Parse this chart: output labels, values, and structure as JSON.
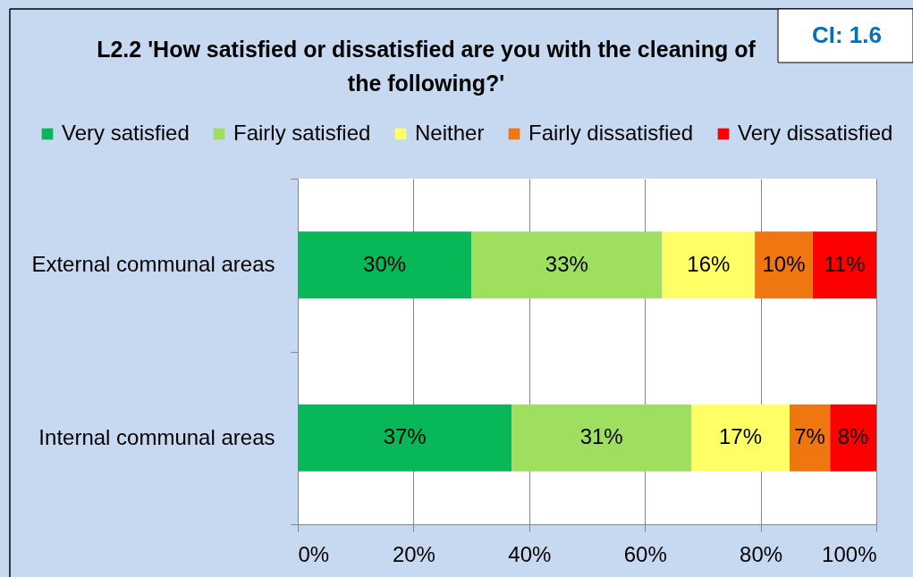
{
  "chart_data": {
    "type": "bar",
    "orientation": "horizontal",
    "stacked": true,
    "title": "L2.2 'How satisfied or dissatisfied are you with the cleaning of the following?'",
    "annotations": [
      "CI: 1.6"
    ],
    "categories": [
      "External communal areas",
      "Internal communal areas"
    ],
    "series": [
      {
        "name": "Very satisfied",
        "color": "#08b858",
        "values": [
          30,
          37
        ],
        "value_labels": [
          "30%",
          "37%"
        ]
      },
      {
        "name": "Fairly satisfied",
        "color": "#9fdf5f",
        "values": [
          33,
          31
        ],
        "value_labels": [
          "33%",
          "31%"
        ]
      },
      {
        "name": "Neither",
        "color": "#ffff66",
        "values": [
          16,
          17
        ],
        "value_labels": [
          "16%",
          "17%"
        ]
      },
      {
        "name": "Fairly dissatisfied",
        "color": "#f0760f",
        "values": [
          10,
          7
        ],
        "value_labels": [
          "10%",
          "7%"
        ]
      },
      {
        "name": "Very dissatisfied",
        "color": "#ff0000",
        "values": [
          11,
          8
        ],
        "value_labels": [
          "11%",
          "8%"
        ]
      }
    ],
    "xlim": [
      0,
      100
    ],
    "xticks": [
      {
        "value": 0,
        "label": "0%"
      },
      {
        "value": 20,
        "label": "20%"
      },
      {
        "value": 40,
        "label": "40%"
      },
      {
        "value": 60,
        "label": "60%"
      },
      {
        "value": 80,
        "label": "80%"
      },
      {
        "value": 100,
        "label": "100%"
      }
    ],
    "grid": "x",
    "legend": "top"
  }
}
